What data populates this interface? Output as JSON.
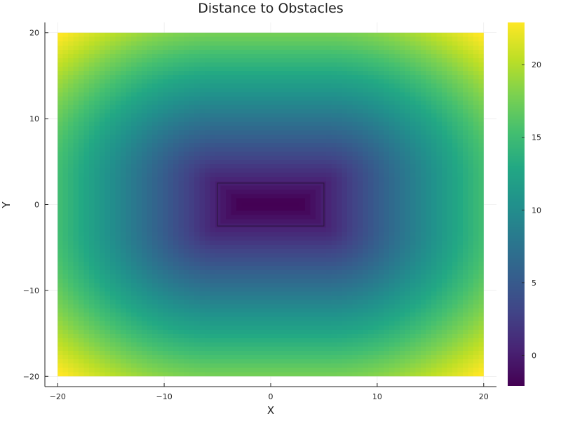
{
  "chart_data": {
    "type": "heatmap",
    "title": "Distance to Obstacles",
    "xlabel": "X",
    "ylabel": "Y",
    "x_range": [
      -20,
      20
    ],
    "y_range": [
      -20,
      20
    ],
    "xlim": [
      -21.2,
      21.2
    ],
    "ylim": [
      -21.2,
      21.2
    ],
    "xticks": [
      -20,
      -10,
      0,
      10,
      20
    ],
    "yticks": [
      -20,
      -10,
      0,
      10,
      20
    ],
    "x_tick_labels": [
      "−20",
      "−10",
      "0",
      "10",
      "20"
    ],
    "y_tick_labels": [
      "−20",
      "−10",
      "0",
      "10",
      "20"
    ],
    "colorbar": {
      "range": [
        -2.1,
        22.9
      ],
      "ticks": [
        0,
        5,
        10,
        15,
        20
      ],
      "tick_labels": [
        "0",
        "5",
        "10",
        "15",
        "20"
      ]
    },
    "colormap": "viridis",
    "grid": true,
    "obstacle": {
      "shape": "rectangle",
      "x": [
        -5,
        5
      ],
      "y": [
        -2.5,
        2.5
      ]
    },
    "field": "signed distance from rectangle centered at origin, 10 wide by 5 tall"
  }
}
